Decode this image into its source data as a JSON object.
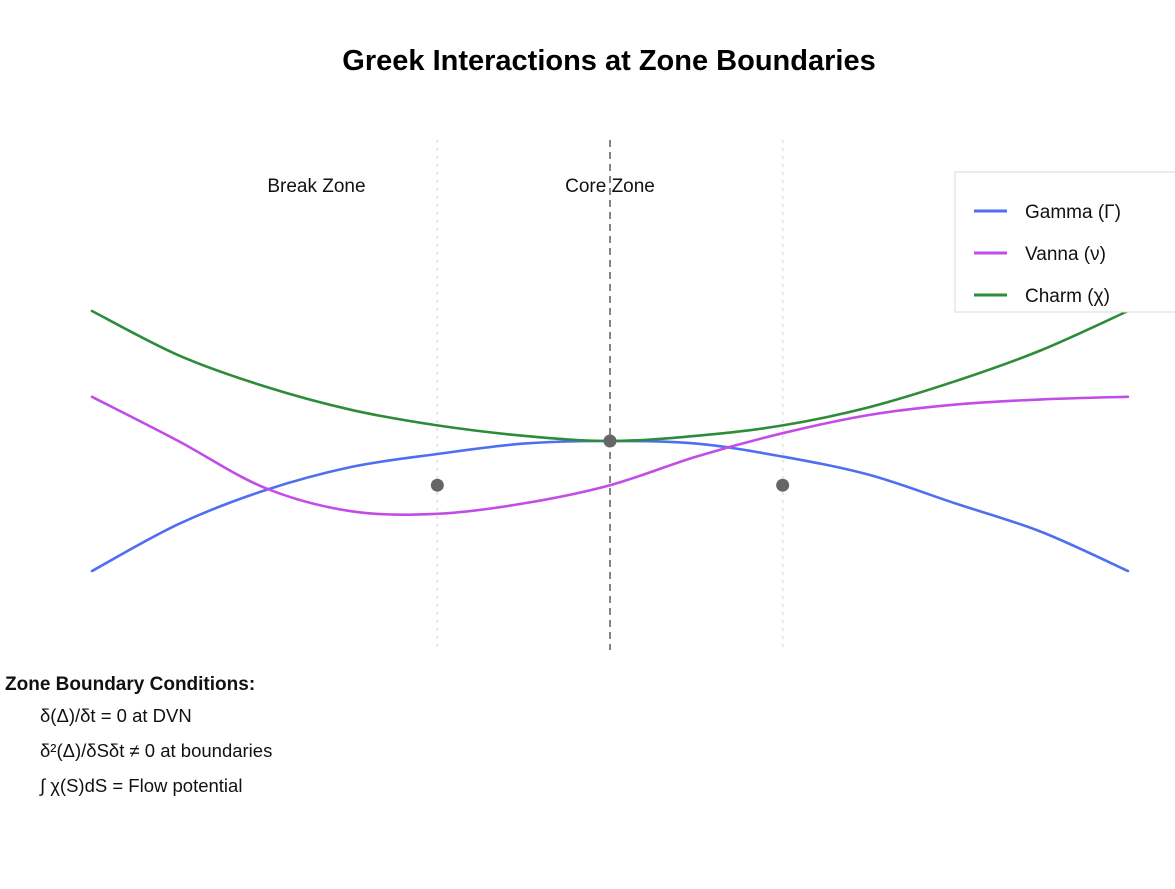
{
  "chart_data": {
    "type": "line",
    "title": "Greek Interactions at Zone Boundaries",
    "xlabel": "",
    "ylabel": "",
    "xlim": [
      0,
      12
    ],
    "ylim": [
      -1,
      1
    ],
    "grid": false,
    "axes_visible": false,
    "legend_placement": "top-right",
    "zones": [
      {
        "label": "Break Zone",
        "label_x": 2.6
      },
      {
        "label": "Core Zone",
        "label_x": 6.0
      }
    ],
    "boundaries": [
      {
        "x": 4,
        "style": "dotted",
        "color": "#dddddd"
      },
      {
        "x": 6,
        "style": "dashed",
        "color": "#666666"
      },
      {
        "x": 8,
        "style": "dotted",
        "color": "#dddddd"
      }
    ],
    "markers": [
      {
        "x": 4,
        "y": -0.17
      },
      {
        "x": 6,
        "y": 0.0
      },
      {
        "x": 8,
        "y": -0.17
      }
    ],
    "marker_color": "#666666",
    "series": [
      {
        "name": "Gamma (Γ)",
        "color": "#4f6ff0",
        "x": [
          0,
          1,
          2,
          3,
          4,
          5,
          6,
          7,
          8,
          9,
          10,
          11,
          12
        ],
        "y": [
          -0.5,
          -0.32,
          -0.19,
          -0.1,
          -0.05,
          -0.01,
          0.0,
          -0.01,
          -0.06,
          -0.13,
          -0.24,
          -0.35,
          -0.5
        ]
      },
      {
        "name": "Vanna (ν)",
        "color": "#c24de6",
        "x": [
          0,
          1,
          2,
          3,
          4,
          5,
          6,
          7,
          8,
          9,
          10,
          11,
          12
        ],
        "y": [
          0.17,
          0.0,
          -0.18,
          -0.27,
          -0.28,
          -0.24,
          -0.17,
          -0.06,
          0.03,
          0.1,
          0.14,
          0.16,
          0.17
        ]
      },
      {
        "name": "Charm (χ)",
        "color": "#2e8b3a",
        "x": [
          0,
          1,
          2,
          3,
          4,
          5,
          6,
          7,
          8,
          9,
          10,
          11,
          12
        ],
        "y": [
          0.5,
          0.33,
          0.21,
          0.12,
          0.06,
          0.02,
          0.0,
          0.02,
          0.06,
          0.13,
          0.23,
          0.35,
          0.5
        ]
      }
    ]
  },
  "conditions": {
    "heading": "Zone Boundary Conditions:",
    "lines": [
      "δ(Δ)/δt = 0 at DVN",
      "δ²(Δ)/δSδt ≠ 0 at boundaries",
      "∫ χ(S)dS = Flow potential"
    ]
  }
}
